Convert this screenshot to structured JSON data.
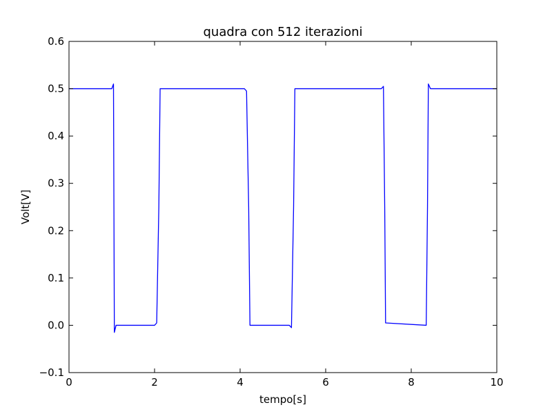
{
  "chart_data": {
    "type": "line",
    "title": "quadra con 512 iterazioni",
    "xlabel": "tempo[s]",
    "ylabel": "Volt[V]",
    "xlim": [
      0,
      10
    ],
    "ylim": [
      -0.1,
      0.6
    ],
    "xticks": [
      0,
      2,
      4,
      6,
      8,
      10
    ],
    "xtick_labels": [
      "0",
      "2",
      "4",
      "6",
      "8",
      "10"
    ],
    "yticks": [
      -0.1,
      0.0,
      0.1,
      0.2,
      0.3,
      0.4,
      0.5,
      0.6
    ],
    "ytick_labels": [
      "−0.1",
      "0.0",
      "0.1",
      "0.2",
      "0.3",
      "0.4",
      "0.5",
      "0.6"
    ],
    "grid": false,
    "series": [
      {
        "color": "#0000ff",
        "x": [
          0,
          1.0,
          1.04,
          1.05,
          1.06,
          1.1,
          2.0,
          2.05,
          2.1,
          2.13,
          2.16,
          4.1,
          4.15,
          4.2,
          4.23,
          5.15,
          5.2,
          5.25,
          5.28,
          7.3,
          7.35,
          7.38,
          7.4,
          8.35,
          8.38,
          8.4,
          8.45,
          10
        ],
        "y": [
          0.5,
          0.5,
          0.51,
          0.25,
          -0.015,
          0.0,
          0.0,
          0.005,
          0.25,
          0.5,
          0.5,
          0.5,
          0.495,
          0.25,
          0.0,
          0.0,
          -0.005,
          0.25,
          0.5,
          0.5,
          0.505,
          0.25,
          0.005,
          0.0,
          0.25,
          0.51,
          0.5,
          0.5
        ]
      }
    ]
  }
}
